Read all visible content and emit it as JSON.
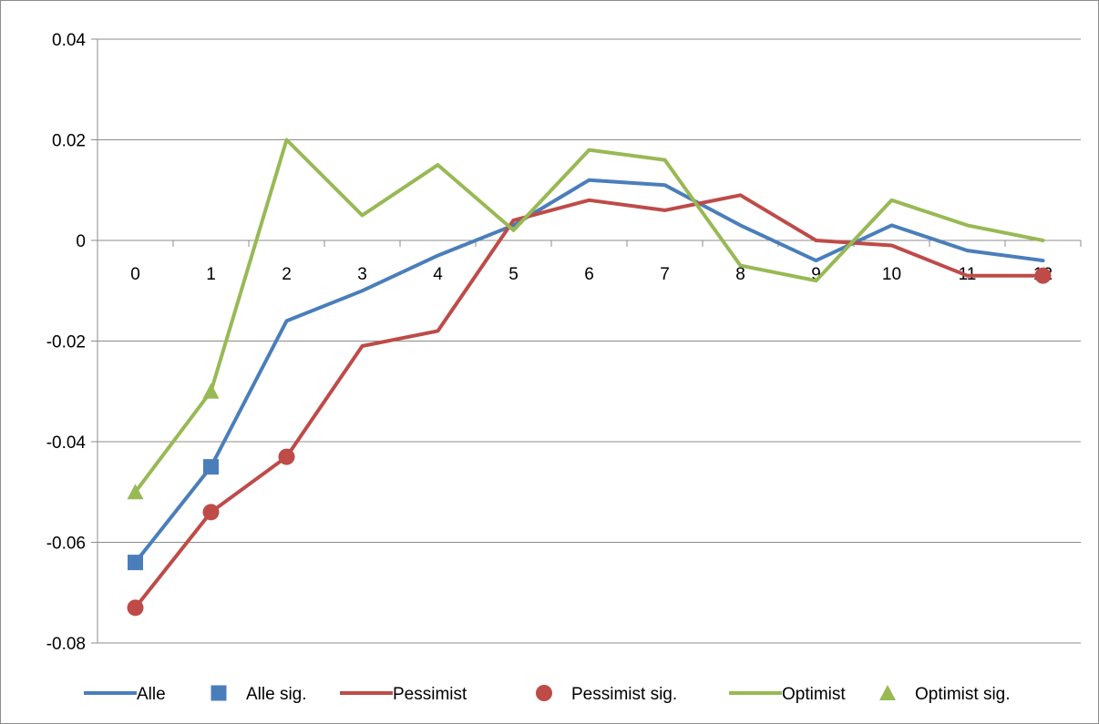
{
  "chart_data": {
    "type": "line",
    "title": "",
    "xlabel": "",
    "ylabel": "",
    "x": [
      0,
      1,
      2,
      3,
      4,
      5,
      6,
      7,
      8,
      9,
      10,
      11,
      12
    ],
    "y_ticks": [
      "0.04",
      "0.02",
      "0",
      "-0.02",
      "-0.04",
      "-0.06",
      "-0.08"
    ],
    "ylim": [
      -0.08,
      0.04
    ],
    "grid": true,
    "legend_position": "bottom",
    "series": [
      {
        "name": "Alle",
        "kind": "line",
        "color": "#4a7ebb",
        "values": [
          -0.064,
          -0.045,
          -0.016,
          -0.01,
          -0.003,
          0.003,
          0.012,
          0.011,
          0.003,
          -0.004,
          0.003,
          -0.002,
          -0.004
        ]
      },
      {
        "name": "Pessimist",
        "kind": "line",
        "color": "#be4b48",
        "values": [
          -0.073,
          -0.054,
          -0.043,
          -0.021,
          -0.018,
          0.004,
          0.008,
          0.006,
          0.009,
          0.0,
          -0.001,
          -0.007,
          -0.007
        ]
      },
      {
        "name": "Optimist",
        "kind": "line",
        "color": "#98b954",
        "values": [
          -0.05,
          -0.03,
          0.02,
          0.005,
          0.015,
          0.002,
          0.018,
          0.016,
          -0.005,
          -0.008,
          0.008,
          0.003,
          0.0
        ]
      },
      {
        "name": "Alle sig.",
        "kind": "marker",
        "marker": "square",
        "color": "#4a7ebb",
        "points": [
          [
            0,
            -0.064
          ],
          [
            1,
            -0.045
          ]
        ]
      },
      {
        "name": "Pessimist sig.",
        "kind": "marker",
        "marker": "circle",
        "color": "#be4b48",
        "points": [
          [
            0,
            -0.073
          ],
          [
            1,
            -0.054
          ],
          [
            2,
            -0.043
          ],
          [
            12,
            -0.007
          ]
        ]
      },
      {
        "name": "Optimist sig.",
        "kind": "marker",
        "marker": "triangle",
        "color": "#98b954",
        "points": [
          [
            0,
            -0.05
          ],
          [
            1,
            -0.03
          ]
        ]
      }
    ],
    "legend": [
      {
        "name": "Alle",
        "symbol": "line",
        "color": "#4a7ebb"
      },
      {
        "name": "Alle sig.",
        "symbol": "square",
        "color": "#4a7ebb"
      },
      {
        "name": "Pessimist",
        "symbol": "line",
        "color": "#be4b48"
      },
      {
        "name": "Pessimist sig.",
        "symbol": "circle",
        "color": "#be4b48"
      },
      {
        "name": "Optimist",
        "symbol": "line",
        "color": "#98b954"
      },
      {
        "name": "Optimist sig.",
        "symbol": "triangle",
        "color": "#98b954"
      }
    ]
  }
}
